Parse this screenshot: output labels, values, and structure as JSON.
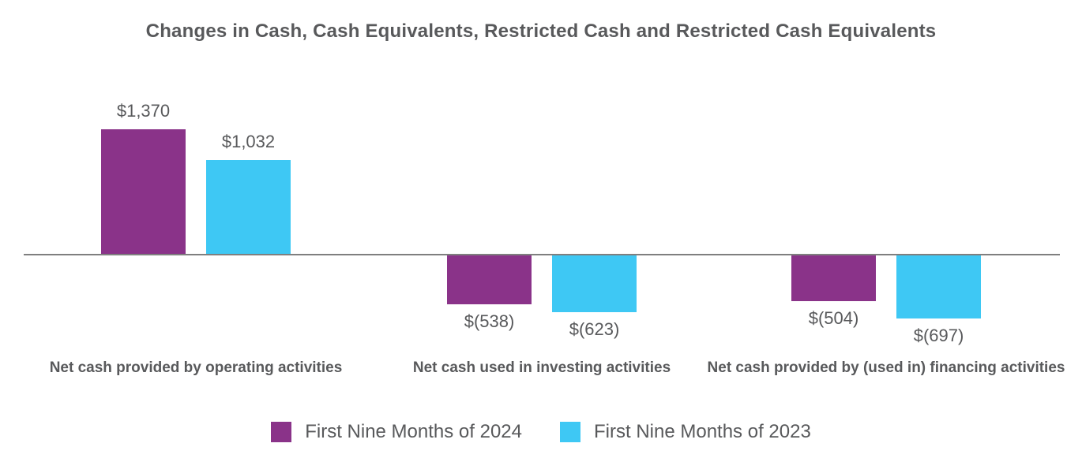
{
  "title": "Changes in Cash, Cash Equivalents, Restricted Cash and Restricted Cash Equivalents",
  "colors": {
    "series_2024": "#8A3389",
    "series_2023": "#3EC8F4",
    "axis_line": "#7F7F7F",
    "text_gray": "#58595B",
    "background": "#FFFFFF"
  },
  "chart_data": {
    "type": "bar",
    "title": "Changes in Cash, Cash Equivalents, Restricted Cash and Restricted Cash Equivalents",
    "categories": [
      "Net cash provided by operating activities",
      "Net cash used in investing activities",
      "Net cash provided by (used in) financing activities"
    ],
    "series": [
      {
        "name": "First Nine Months of 2024",
        "color": "#8A3389",
        "values": [
          1370,
          -538,
          -504
        ],
        "display_labels": [
          "$1,370",
          "$(538)",
          "$(504)"
        ]
      },
      {
        "name": "First Nine Months of 2023",
        "color": "#3EC8F4",
        "values": [
          1032,
          -623,
          -697
        ],
        "display_labels": [
          "$1,032",
          "$(623)",
          "$(697)"
        ]
      }
    ],
    "xlabel": "",
    "ylabel": "",
    "ylim": [
      -900,
      1600
    ],
    "grid": false,
    "axis_baseline": 0,
    "legend_position": "bottom"
  }
}
